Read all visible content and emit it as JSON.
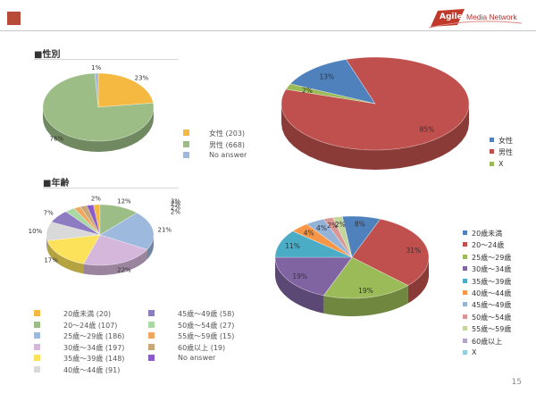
{
  "header": {
    "logo_brand": "Agile",
    "logo_rest": "Media Network"
  },
  "sections": {
    "gender_title": "■性別",
    "age_title": "■年齢"
  },
  "page_number": "15",
  "colors": {
    "accent": "#b84a3a",
    "female": "#f5b942",
    "male": "#9cbe86",
    "no_answer": "#9db9de",
    "right_female": "#4f81bd",
    "right_male": "#c0504d",
    "right_x": "#9bbb59"
  },
  "chart_data": [
    {
      "id": "gender-small",
      "type": "pie",
      "categories": [
        "女性 (203)",
        "男性 (668)",
        "No answer"
      ],
      "values": [
        23,
        76,
        1
      ],
      "labels": [
        "23%",
        "76%",
        "1%"
      ],
      "colors": [
        "#f5b942",
        "#9cbe86",
        "#9db9de"
      ]
    },
    {
      "id": "gender-large",
      "type": "pie",
      "categories": [
        "女性",
        "男性",
        "X"
      ],
      "values": [
        13,
        85,
        2
      ],
      "labels": [
        "13%",
        "85%",
        "2%"
      ],
      "colors": [
        "#4f81bd",
        "#c0504d",
        "#9bbb59"
      ]
    },
    {
      "id": "age-small",
      "type": "pie",
      "categories": [
        "20歳未満 (20)",
        "20〜24歳 (107)",
        "25歳〜29歳 (186)",
        "30歳〜34歳 (197)",
        "35歳〜39歳 (148)",
        "40歳〜44歳 (91)",
        "45歳〜49歳 (58)",
        "50歳〜54歳 (27)",
        "55歳〜59歳 (15)",
        "60歳以上 (19)",
        "No answer"
      ],
      "values": [
        2,
        12,
        21,
        22,
        17,
        10,
        7,
        3,
        2,
        2,
        2
      ],
      "labels": [
        "2%",
        "12%",
        "21%",
        "22%",
        "17%",
        "10%",
        "7%",
        "3%",
        "2%",
        "2%",
        "2%"
      ],
      "colors": [
        "#f5b942",
        "#9cbe86",
        "#9db9de",
        "#d6b7dc",
        "#fce25a",
        "#d9d9d9",
        "#8e7cc3",
        "#a9d9a3",
        "#f0a860",
        "#c9a777",
        "#8a5cc9"
      ]
    },
    {
      "id": "age-large",
      "type": "pie",
      "categories": [
        "20歳未満",
        "20〜24歳",
        "25歳〜29歳",
        "30歳〜34歳",
        "35歳〜39歳",
        "40歳〜44歳",
        "45歳〜49歳",
        "50歳〜54歳",
        "55歳〜59歳",
        "60歳以上",
        "X"
      ],
      "values": [
        8,
        31,
        19,
        19,
        11,
        4,
        4,
        2,
        2,
        0,
        0
      ],
      "labels": [
        "8%",
        "31%",
        "19%",
        "19%",
        "11%",
        "4%",
        "4%",
        "2%",
        "2%",
        "",
        ""
      ],
      "colors": [
        "#4f81bd",
        "#c0504d",
        "#9bbb59",
        "#8064a2",
        "#4bacc6",
        "#f79646",
        "#95b3d7",
        "#d99694",
        "#c3d69b",
        "#b3a2c7",
        "#93cddd"
      ]
    }
  ],
  "legends": {
    "gender_small": [
      "女性 (203)",
      "男性 (668)",
      "No answer"
    ],
    "gender_large": [
      "女性",
      "男性",
      "X"
    ],
    "age_large": [
      "20歳未満",
      "20〜24歳",
      "25歳〜29歳",
      "30歳〜34歳",
      "35歳〜39歳",
      "40歳〜44歳",
      "45歳〜49歳",
      "50歳〜54歳",
      "55歳〜59歳",
      "60歳以上",
      "X"
    ],
    "age_small": [
      "20歳未満 (20)",
      "20〜24歳 (107)",
      "25歳〜29歳 (186)",
      "30歳〜34歳 (197)",
      "35歳〜39歳 (148)",
      "40歳〜44歳 (91)",
      "45歳〜49歳 (58)",
      "50歳〜54歳 (27)",
      "55歳〜59歳 (15)",
      "60歳以上 (19)",
      "No answer"
    ]
  }
}
